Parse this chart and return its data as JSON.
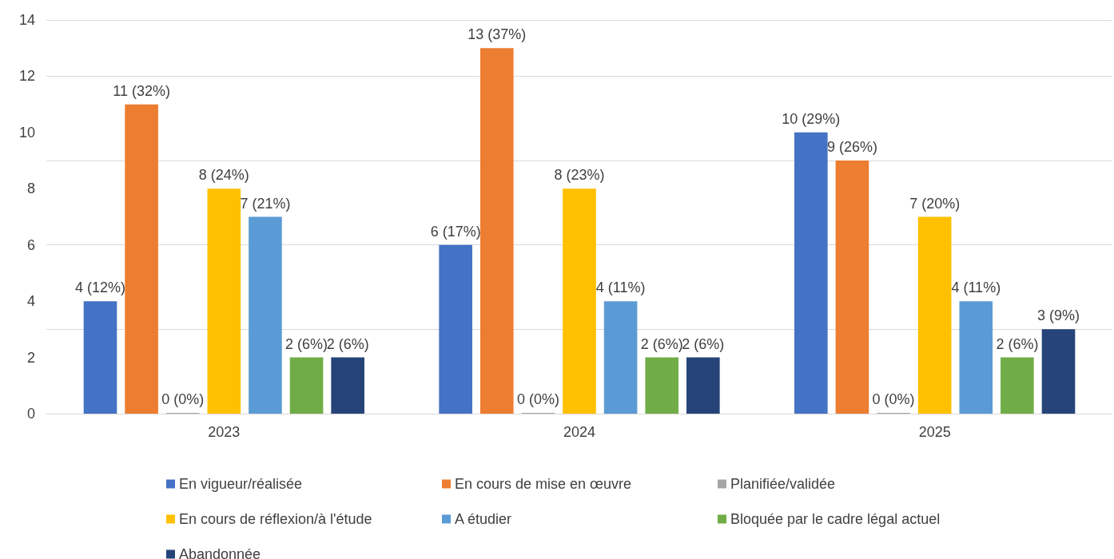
{
  "chart_data": {
    "type": "bar",
    "categories": [
      "2023",
      "2024",
      "2025"
    ],
    "series": [
      {
        "name": "En vigueur/réalisée",
        "color": "#4472c4",
        "values": [
          4,
          6,
          10
        ],
        "value_labels": [
          "4 (12%)",
          "6 (17%)",
          "10 (29%)"
        ]
      },
      {
        "name": "En cours de mise en œuvre",
        "color": "#ed7d31",
        "values": [
          11,
          13,
          9
        ],
        "value_labels": [
          "11 (32%)",
          "13 (37%)",
          "9 (26%)"
        ]
      },
      {
        "name": "Planifiée/validée",
        "color": "#a5a5a5",
        "values": [
          0,
          0,
          0
        ],
        "value_labels": [
          "0 (0%)",
          "0 (0%)",
          "0 (0%)"
        ]
      },
      {
        "name": "En cours de réflexion/à l'étude",
        "color": "#ffc000",
        "values": [
          8,
          8,
          7
        ],
        "value_labels": [
          "8 (24%)",
          "8 (23%)",
          "7 (20%)"
        ]
      },
      {
        "name": "A étudier",
        "color": "#5b9bd5",
        "values": [
          7,
          4,
          4
        ],
        "value_labels": [
          "7 (21%)",
          "4 (11%)",
          "4 (11%)"
        ]
      },
      {
        "name": "Bloquée par le cadre légal actuel",
        "color": "#70ad47",
        "values": [
          2,
          2,
          2
        ],
        "value_labels": [
          "2 (6%)",
          "2 (6%)",
          "2 (6%)"
        ]
      },
      {
        "name": "Abandonnée",
        "color": "#264478",
        "values": [
          2,
          2,
          3
        ],
        "value_labels": [
          "2 (6%)",
          "2 (6%)",
          "3 (9%)"
        ]
      }
    ],
    "ylim": [
      0,
      14
    ],
    "yticks": [
      0,
      2,
      4,
      6,
      8,
      10,
      12,
      14
    ],
    "grid": "y",
    "legend": "bottom"
  }
}
